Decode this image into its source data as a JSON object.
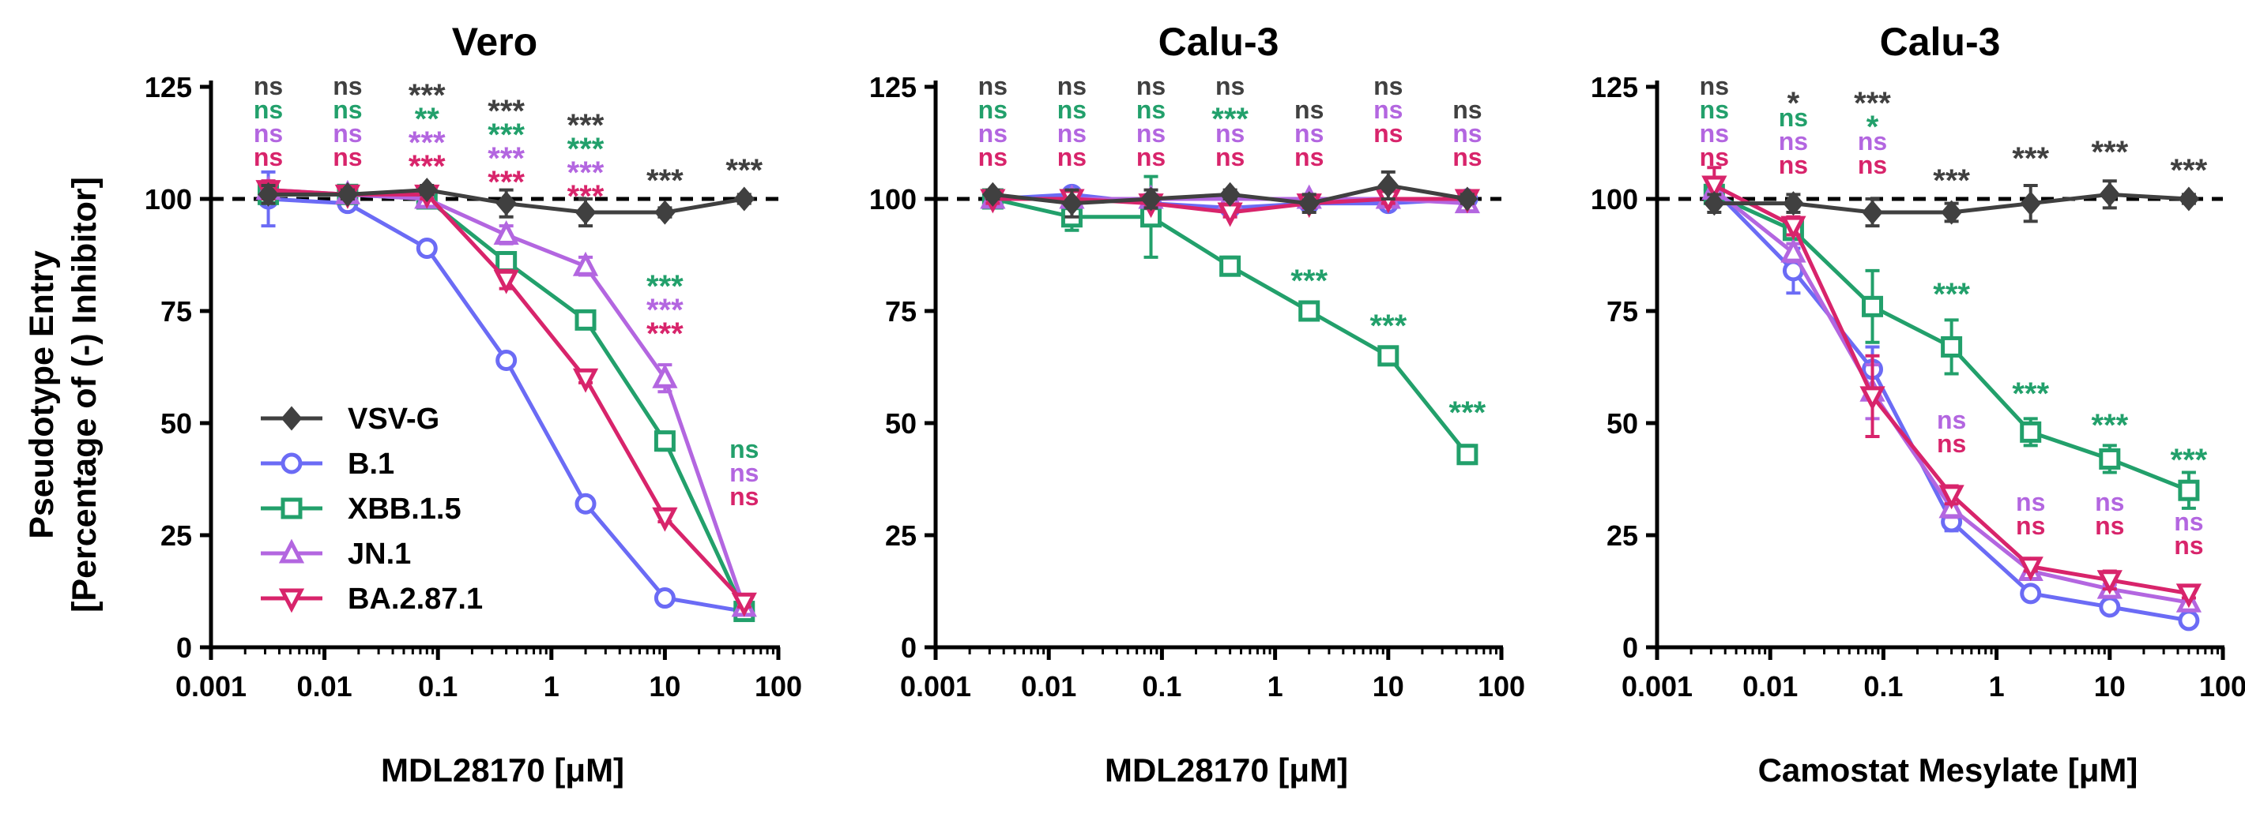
{
  "figure": {
    "ylabel_line1": "Pseudotype Entry",
    "ylabel_line2": "[Percentage of (-) Inhibitor]",
    "colors": {
      "VSV-G": "#404040",
      "B.1": "#6b6bf5",
      "XBB.1.5": "#22a06b",
      "JN.1": "#b366e0",
      "BA.2.87.1": "#d8246b"
    }
  },
  "legend": [
    {
      "name": "VSV-G",
      "marker": "diamond"
    },
    {
      "name": "B.1",
      "marker": "circle"
    },
    {
      "name": "XBB.1.5",
      "marker": "square"
    },
    {
      "name": "JN.1",
      "marker": "triangle-up"
    },
    {
      "name": "BA.2.87.1",
      "marker": "triangle-down"
    }
  ],
  "chart_data": [
    {
      "type": "line",
      "title": "Vero",
      "xlabel": "MDL28170 [μM]",
      "xscale": "log",
      "xlim": [
        0.001,
        100
      ],
      "ylim": [
        0,
        125
      ],
      "xtick_labels": [
        "0.001",
        "0.01",
        "0.1",
        "1",
        "10",
        "100"
      ],
      "ytick_labels": [
        "0",
        "25",
        "50",
        "75",
        "100",
        "125"
      ],
      "x": [
        0.0032,
        0.016,
        0.08,
        0.4,
        2,
        10,
        50
      ],
      "reference_line": 100,
      "series": [
        {
          "name": "VSV-G",
          "values": [
            101,
            101,
            102,
            99,
            97,
            97,
            100
          ],
          "errors": [
            2,
            1,
            1,
            3,
            3,
            1,
            1
          ]
        },
        {
          "name": "B.1",
          "values": [
            100,
            99,
            89,
            64,
            32,
            11,
            8
          ],
          "errors": [
            6,
            1,
            1,
            1,
            1,
            1,
            1
          ]
        },
        {
          "name": "XBB.1.5",
          "values": [
            101,
            101,
            100,
            86,
            73,
            46,
            8
          ],
          "errors": [
            2,
            1,
            1,
            2,
            1,
            2,
            1
          ]
        },
        {
          "name": "JN.1",
          "values": [
            102,
            101,
            100,
            92,
            85,
            60,
            9
          ],
          "errors": [
            2,
            1,
            1,
            2,
            2,
            3,
            1
          ]
        },
        {
          "name": "BA.2.87.1",
          "values": [
            102,
            101,
            101,
            82,
            60,
            29,
            10
          ],
          "errors": [
            2,
            1,
            1,
            2,
            1,
            1,
            1
          ]
        }
      ],
      "annotations": [
        {
          "x": 0.0032,
          "lines": [
            {
              "text": "ns",
              "series": "VSV-G"
            },
            {
              "text": "ns",
              "series": "XBB.1.5"
            },
            {
              "text": "ns",
              "series": "JN.1"
            },
            {
              "text": "ns",
              "series": "BA.2.87.1"
            }
          ]
        },
        {
          "x": 0.016,
          "lines": [
            {
              "text": "ns",
              "series": "VSV-G"
            },
            {
              "text": "ns",
              "series": "XBB.1.5"
            },
            {
              "text": "ns",
              "series": "JN.1"
            },
            {
              "text": "ns",
              "series": "BA.2.87.1"
            }
          ]
        },
        {
          "x": 0.08,
          "lines": [
            {
              "text": "***",
              "series": "VSV-G"
            },
            {
              "text": "**",
              "series": "XBB.1.5"
            },
            {
              "text": "***",
              "series": "JN.1"
            },
            {
              "text": "***",
              "series": "BA.2.87.1"
            }
          ]
        },
        {
          "x": 0.4,
          "lines": [
            {
              "text": "***",
              "series": "VSV-G"
            },
            {
              "text": "***",
              "series": "XBB.1.5"
            },
            {
              "text": "***",
              "series": "JN.1"
            },
            {
              "text": "***",
              "series": "BA.2.87.1"
            }
          ]
        },
        {
          "x": 2,
          "lines": [
            {
              "text": "***",
              "series": "VSV-G"
            },
            {
              "text": "***",
              "series": "XBB.1.5"
            },
            {
              "text": "***",
              "series": "JN.1"
            },
            {
              "text": "***",
              "series": "BA.2.87.1"
            }
          ]
        },
        {
          "x": 10,
          "lines": [
            {
              "text": "***",
              "series": "VSV-G"
            }
          ]
        },
        {
          "x": 50,
          "lines": [
            {
              "text": "***",
              "series": "VSV-G"
            }
          ]
        },
        {
          "x": 10,
          "lines": [
            {
              "text": "***",
              "series": "XBB.1.5"
            },
            {
              "text": "***",
              "series": "JN.1"
            },
            {
              "text": "***",
              "series": "BA.2.87.1"
            }
          ]
        },
        {
          "x": 50,
          "lines": [
            {
              "text": "ns",
              "series": "XBB.1.5"
            },
            {
              "text": "ns",
              "series": "JN.1"
            },
            {
              "text": "ns",
              "series": "BA.2.87.1"
            }
          ]
        }
      ]
    },
    {
      "type": "line",
      "title": "Calu-3",
      "xlabel": "MDL28170 [μM]",
      "xscale": "log",
      "xlim": [
        0.001,
        100
      ],
      "ylim": [
        0,
        125
      ],
      "xtick_labels": [
        "0.001",
        "0.01",
        "0.1",
        "1",
        "10",
        "100"
      ],
      "ytick_labels": [
        "0",
        "25",
        "50",
        "75",
        "100",
        "125"
      ],
      "x": [
        0.0032,
        0.016,
        0.08,
        0.4,
        2,
        10,
        50
      ],
      "reference_line": 100,
      "series": [
        {
          "name": "VSV-G",
          "values": [
            101,
            99,
            100,
            101,
            99,
            103,
            100
          ],
          "errors": [
            1,
            3,
            2,
            1,
            2,
            3,
            1
          ]
        },
        {
          "name": "B.1",
          "values": [
            100,
            101,
            99,
            98,
            99,
            99,
            100
          ],
          "errors": [
            1,
            1,
            1,
            1,
            1,
            1,
            1
          ]
        },
        {
          "name": "XBB.1.5",
          "values": [
            100,
            96,
            96,
            85,
            75,
            65,
            43
          ],
          "errors": [
            1,
            3,
            9,
            2,
            1,
            1,
            2
          ]
        },
        {
          "name": "JN.1",
          "values": [
            100,
            100,
            100,
            100,
            100,
            100,
            99
          ],
          "errors": [
            1,
            1,
            1,
            1,
            1,
            1,
            1
          ]
        },
        {
          "name": "BA.2.87.1",
          "values": [
            100,
            100,
            99,
            97,
            99,
            100,
            100
          ],
          "errors": [
            1,
            1,
            1,
            1,
            1,
            1,
            1
          ]
        }
      ],
      "annotations": [
        {
          "x": 0.0032,
          "lines": [
            {
              "text": "ns",
              "series": "VSV-G"
            },
            {
              "text": "ns",
              "series": "XBB.1.5"
            },
            {
              "text": "ns",
              "series": "JN.1"
            },
            {
              "text": "ns",
              "series": "BA.2.87.1"
            }
          ]
        },
        {
          "x": 0.016,
          "lines": [
            {
              "text": "ns",
              "series": "VSV-G"
            },
            {
              "text": "ns",
              "series": "XBB.1.5"
            },
            {
              "text": "ns",
              "series": "JN.1"
            },
            {
              "text": "ns",
              "series": "BA.2.87.1"
            }
          ]
        },
        {
          "x": 0.08,
          "lines": [
            {
              "text": "ns",
              "series": "VSV-G"
            },
            {
              "text": "ns",
              "series": "XBB.1.5"
            },
            {
              "text": "ns",
              "series": "JN.1"
            },
            {
              "text": "ns",
              "series": "BA.2.87.1"
            }
          ]
        },
        {
          "x": 0.4,
          "lines": [
            {
              "text": "ns",
              "series": "VSV-G"
            },
            {
              "text": "***",
              "series": "XBB.1.5"
            },
            {
              "text": "ns",
              "series": "JN.1"
            },
            {
              "text": "ns",
              "series": "BA.2.87.1"
            }
          ]
        },
        {
          "x": 2,
          "lines": [
            {
              "text": "ns",
              "series": "VSV-G"
            },
            {
              "text": "ns",
              "series": "JN.1"
            },
            {
              "text": "ns",
              "series": "BA.2.87.1"
            }
          ]
        },
        {
          "x": 10,
          "lines": [
            {
              "text": "ns",
              "series": "VSV-G"
            },
            {
              "text": "ns",
              "series": "JN.1"
            },
            {
              "text": "ns",
              "series": "BA.2.87.1"
            }
          ]
        },
        {
          "x": 50,
          "lines": [
            {
              "text": "ns",
              "series": "VSV-G"
            },
            {
              "text": "ns",
              "series": "JN.1"
            },
            {
              "text": "ns",
              "series": "BA.2.87.1"
            }
          ]
        },
        {
          "x": 2,
          "lines": [
            {
              "text": "***",
              "series": "XBB.1.5"
            }
          ]
        },
        {
          "x": 10,
          "lines": [
            {
              "text": "***",
              "series": "XBB.1.5"
            }
          ]
        },
        {
          "x": 50,
          "lines": [
            {
              "text": "***",
              "series": "XBB.1.5"
            }
          ]
        }
      ]
    },
    {
      "type": "line",
      "title": "Calu-3",
      "xlabel": "Camostat Mesylate [μM]",
      "xscale": "log",
      "xlim": [
        0.001,
        100
      ],
      "ylim": [
        0,
        125
      ],
      "xtick_labels": [
        "0.001",
        "0.01",
        "0.1",
        "1",
        "10",
        "100"
      ],
      "ytick_labels": [
        "0",
        "25",
        "50",
        "75",
        "100",
        "125"
      ],
      "x": [
        0.0032,
        0.016,
        0.08,
        0.4,
        2,
        10,
        50
      ],
      "reference_line": 100,
      "series": [
        {
          "name": "VSV-G",
          "values": [
            99,
            99,
            97,
            97,
            99,
            101,
            100
          ],
          "errors": [
            2,
            2,
            3,
            2,
            4,
            3,
            1
          ]
        },
        {
          "name": "B.1",
          "values": [
            102,
            84,
            62,
            28,
            12,
            9,
            6
          ],
          "errors": [
            2,
            5,
            5,
            2,
            1,
            1,
            1
          ]
        },
        {
          "name": "XBB.1.5",
          "values": [
            101,
            93,
            76,
            67,
            48,
            42,
            35
          ],
          "errors": [
            2,
            2,
            8,
            6,
            3,
            3,
            4
          ]
        },
        {
          "name": "JN.1",
          "values": [
            102,
            88,
            57,
            31,
            17,
            13,
            10
          ],
          "errors": [
            2,
            2,
            6,
            2,
            1,
            1,
            1
          ]
        },
        {
          "name": "BA.2.87.1",
          "values": [
            103,
            94,
            56,
            34,
            18,
            15,
            12
          ],
          "errors": [
            4,
            2,
            9,
            2,
            1,
            2,
            1
          ]
        }
      ],
      "annotations": [
        {
          "x": 0.0032,
          "lines": [
            {
              "text": "ns",
              "series": "VSV-G"
            },
            {
              "text": "ns",
              "series": "XBB.1.5"
            },
            {
              "text": "ns",
              "series": "JN.1"
            },
            {
              "text": "ns",
              "series": "BA.2.87.1"
            }
          ]
        },
        {
          "x": 0.016,
          "lines": [
            {
              "text": "*",
              "series": "VSV-G"
            },
            {
              "text": "ns",
              "series": "XBB.1.5"
            },
            {
              "text": "ns",
              "series": "JN.1"
            },
            {
              "text": "ns",
              "series": "BA.2.87.1"
            }
          ]
        },
        {
          "x": 0.08,
          "lines": [
            {
              "text": "***",
              "series": "VSV-G"
            },
            {
              "text": "*",
              "series": "XBB.1.5"
            },
            {
              "text": "ns",
              "series": "JN.1"
            },
            {
              "text": "ns",
              "series": "BA.2.87.1"
            }
          ]
        },
        {
          "x": 0.4,
          "lines": [
            {
              "text": "***",
              "series": "VSV-G"
            }
          ]
        },
        {
          "x": 2,
          "lines": [
            {
              "text": "***",
              "series": "VSV-G"
            }
          ]
        },
        {
          "x": 10,
          "lines": [
            {
              "text": "***",
              "series": "VSV-G"
            }
          ]
        },
        {
          "x": 50,
          "lines": [
            {
              "text": "***",
              "series": "VSV-G"
            }
          ]
        },
        {
          "x": 0.4,
          "lines": [
            {
              "text": "***",
              "series": "XBB.1.5"
            }
          ]
        },
        {
          "x": 2,
          "lines": [
            {
              "text": "***",
              "series": "XBB.1.5"
            }
          ]
        },
        {
          "x": 10,
          "lines": [
            {
              "text": "***",
              "series": "XBB.1.5"
            }
          ]
        },
        {
          "x": 50,
          "lines": [
            {
              "text": "***",
              "series": "XBB.1.5"
            }
          ]
        },
        {
          "x": 0.4,
          "lines": [
            {
              "text": "ns",
              "series": "JN.1"
            },
            {
              "text": "ns",
              "series": "BA.2.87.1"
            }
          ]
        },
        {
          "x": 2,
          "lines": [
            {
              "text": "ns",
              "series": "JN.1"
            },
            {
              "text": "ns",
              "series": "BA.2.87.1"
            }
          ]
        },
        {
          "x": 10,
          "lines": [
            {
              "text": "ns",
              "series": "JN.1"
            },
            {
              "text": "ns",
              "series": "BA.2.87.1"
            }
          ]
        },
        {
          "x": 50,
          "lines": [
            {
              "text": "ns",
              "series": "JN.1"
            },
            {
              "text": "ns",
              "series": "BA.2.87.1"
            }
          ]
        }
      ]
    }
  ]
}
